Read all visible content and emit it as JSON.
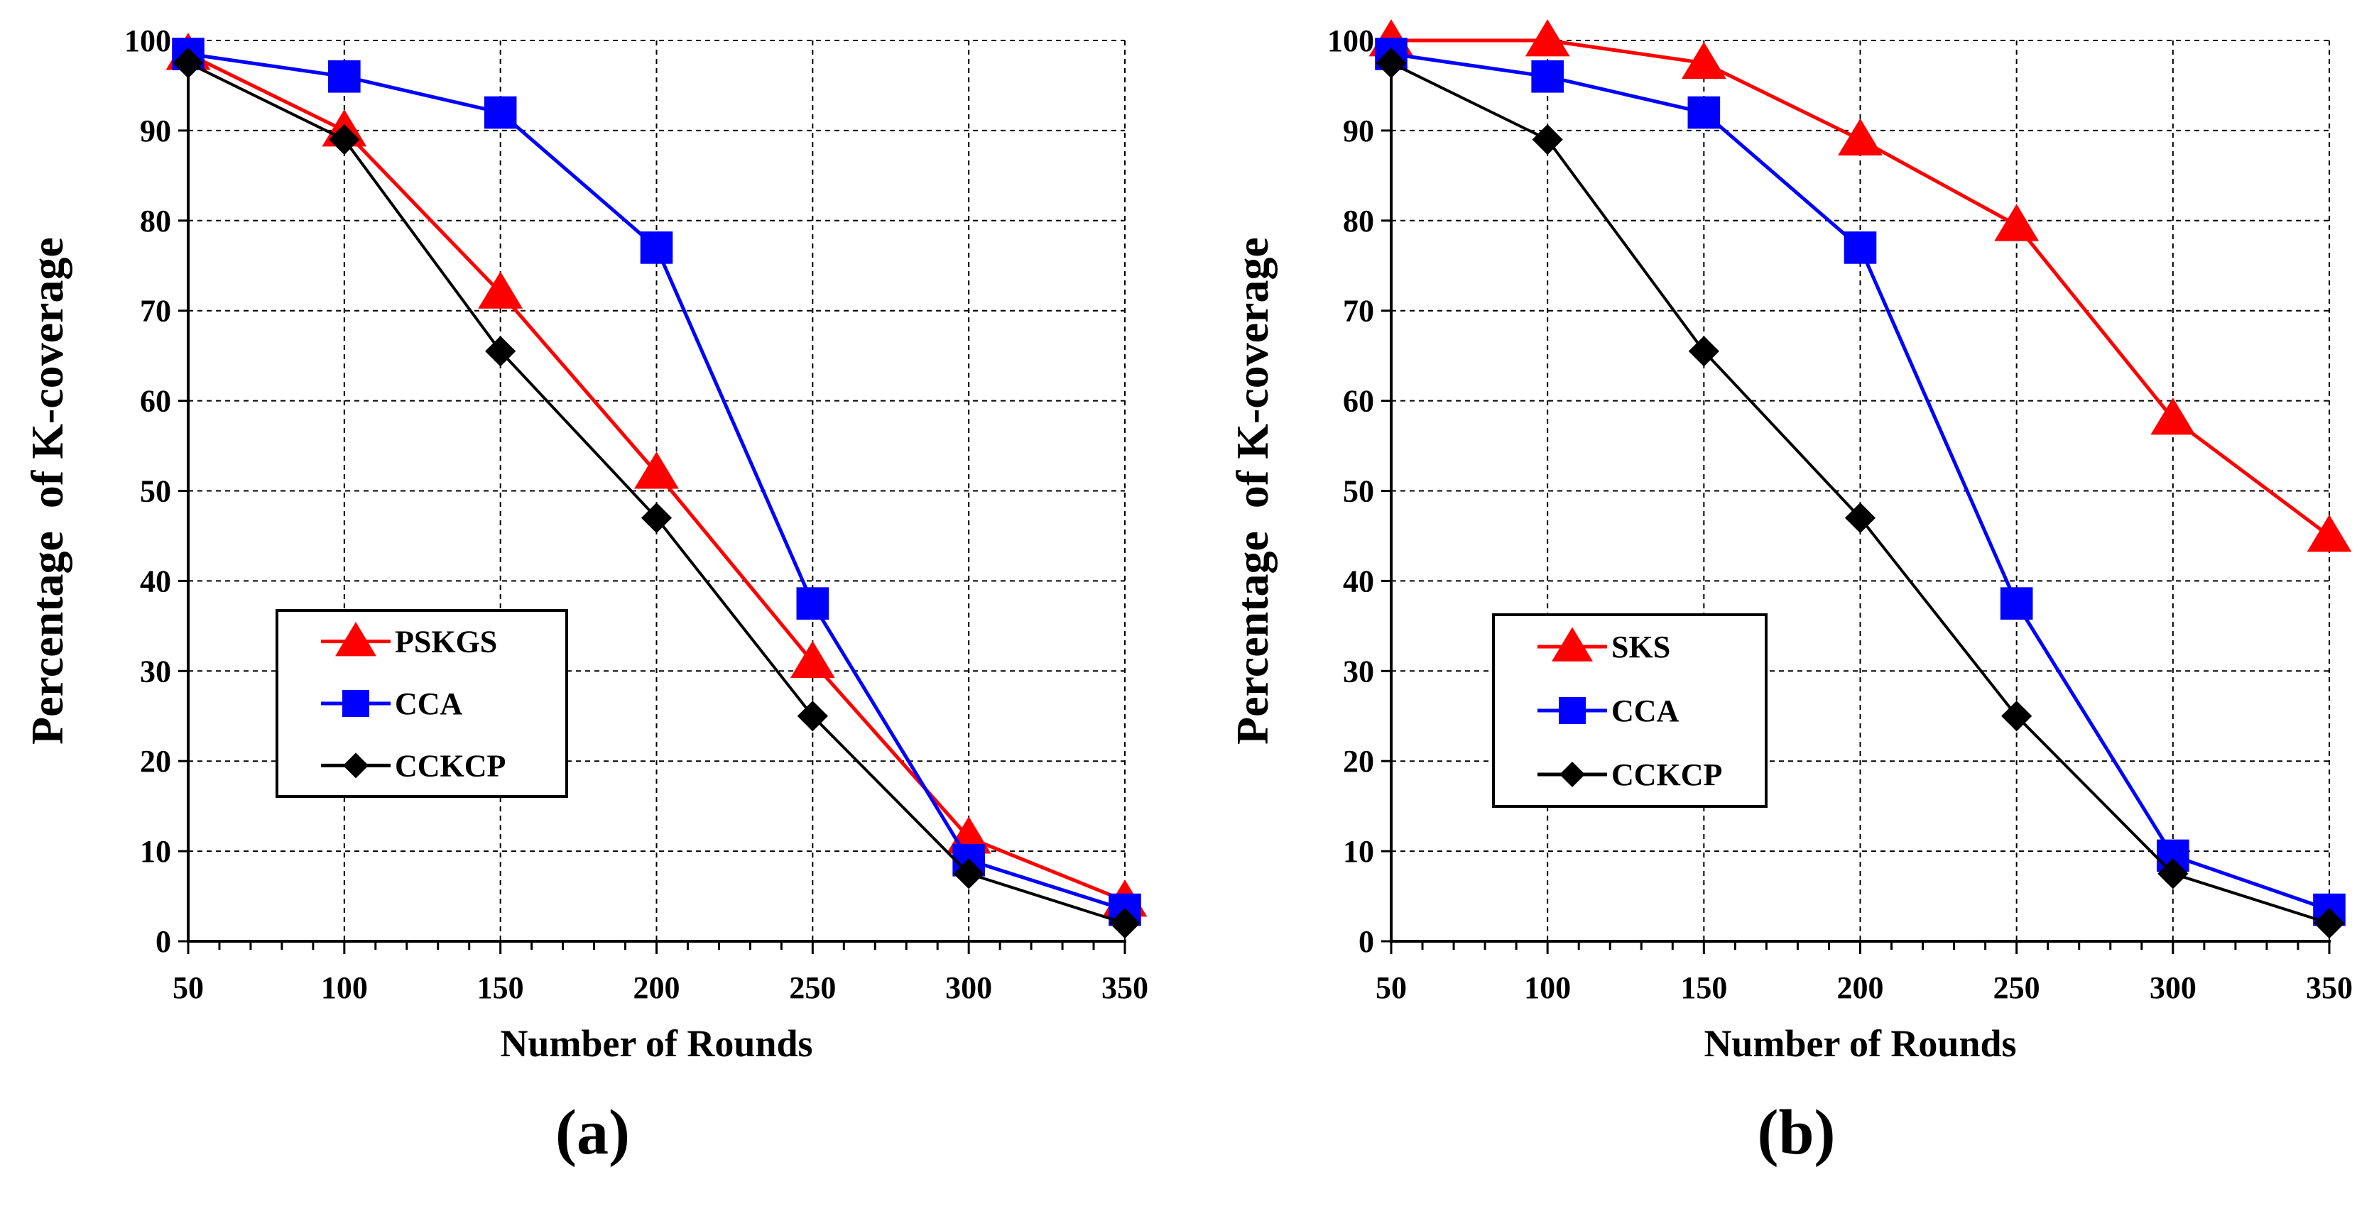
{
  "chart_data": [
    {
      "type": "line",
      "panel_label": "(a)",
      "xlabel": "Number of Rounds",
      "ylabel": "Percentage  of K-coverage",
      "x": [
        50,
        100,
        150,
        200,
        250,
        300,
        350
      ],
      "x_ticks": [
        "50",
        "100",
        "150",
        "200",
        "250",
        "300",
        "350"
      ],
      "y_ticks": [
        "0",
        "10",
        "20",
        "30",
        "40",
        "50",
        "60",
        "70",
        "80",
        "90",
        "100"
      ],
      "xlim": [
        50,
        350
      ],
      "ylim": [
        0,
        100
      ],
      "grid": true,
      "legend_position": "lower-left",
      "series": [
        {
          "name": "PSKGS",
          "color": "#ff0000",
          "marker": "triangle",
          "values": [
            98.5,
            90,
            72,
            52,
            31,
            11.5,
            4.5
          ]
        },
        {
          "name": "CCA",
          "color": "#0000ff",
          "marker": "square",
          "values": [
            98.5,
            96,
            92,
            77,
            37.5,
            9,
            3.5
          ]
        },
        {
          "name": "CCKCP",
          "color": "#000000",
          "marker": "diamond",
          "values": [
            97.5,
            89,
            65.5,
            47,
            25,
            7.5,
            2
          ]
        }
      ]
    },
    {
      "type": "line",
      "panel_label": "(b)",
      "xlabel": "Number of Rounds",
      "ylabel": "Percentage  of K-coverage",
      "x": [
        50,
        100,
        150,
        200,
        250,
        300,
        350
      ],
      "x_ticks": [
        "50",
        "100",
        "150",
        "200",
        "250",
        "300",
        "350"
      ],
      "y_ticks": [
        "0",
        "10",
        "20",
        "30",
        "40",
        "50",
        "60",
        "70",
        "80",
        "90",
        "100"
      ],
      "xlim": [
        50,
        350
      ],
      "ylim": [
        0,
        100
      ],
      "grid": true,
      "legend_position": "lower-left",
      "series": [
        {
          "name": "SKS",
          "color": "#ff0000",
          "marker": "triangle",
          "values": [
            100,
            100,
            97.5,
            89,
            79.5,
            58,
            45
          ]
        },
        {
          "name": "CCA",
          "color": "#0000ff",
          "marker": "square",
          "values": [
            98.5,
            96,
            92,
            77,
            37.5,
            9.5,
            3.5
          ]
        },
        {
          "name": "CCKCP",
          "color": "#000000",
          "marker": "diamond",
          "values": [
            97.5,
            89,
            65.5,
            47,
            25,
            7.5,
            2
          ]
        }
      ]
    }
  ]
}
